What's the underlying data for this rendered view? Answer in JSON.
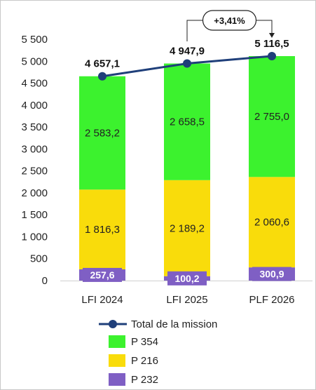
{
  "chart_data": {
    "type": "bar",
    "stacked": true,
    "categories": [
      "LFI 2024",
      "LFI 2025",
      "PLF 2026"
    ],
    "series": [
      {
        "name": "P 232",
        "values": [
          257.6,
          100.2,
          300.9
        ],
        "labels": [
          "257,6",
          "100,2",
          "300,9"
        ],
        "color": "#7f5fc4"
      },
      {
        "name": "P 216",
        "values": [
          1816.3,
          2189.2,
          2060.6
        ],
        "labels": [
          "1 816,3",
          "2 189,2",
          "2 060,6"
        ],
        "color": "#f9dc0b"
      },
      {
        "name": "P 354",
        "values": [
          2583.2,
          2658.5,
          2755.0
        ],
        "labels": [
          "2 583,2",
          "2 658,5",
          "2 755,0"
        ],
        "color": "#3cf22e"
      }
    ],
    "line": {
      "name": "Total de la mission",
      "values": [
        4657.1,
        4947.9,
        5116.5
      ],
      "labels": [
        "4 657,1",
        "4 947,9",
        "5 116,5"
      ],
      "color": "#1f3f7a"
    },
    "annotation": {
      "text": "+3,41%",
      "from": "LFI 2025",
      "to": "PLF 2026"
    },
    "ylim": [
      0,
      5500
    ],
    "yticks": [
      0,
      500,
      1000,
      1500,
      2000,
      2500,
      3000,
      3500,
      4000,
      4500,
      5000,
      5500
    ],
    "ytick_labels": [
      "0",
      "500",
      "1 000",
      "1 500",
      "2 000",
      "2 500",
      "3 000",
      "3 500",
      "4 000",
      "4 500",
      "5 000",
      "5 500"
    ],
    "grid": false,
    "legend_placement": "bottom",
    "legend_order": [
      "Total de la mission",
      "P 354",
      "P 216",
      "P 232"
    ]
  }
}
